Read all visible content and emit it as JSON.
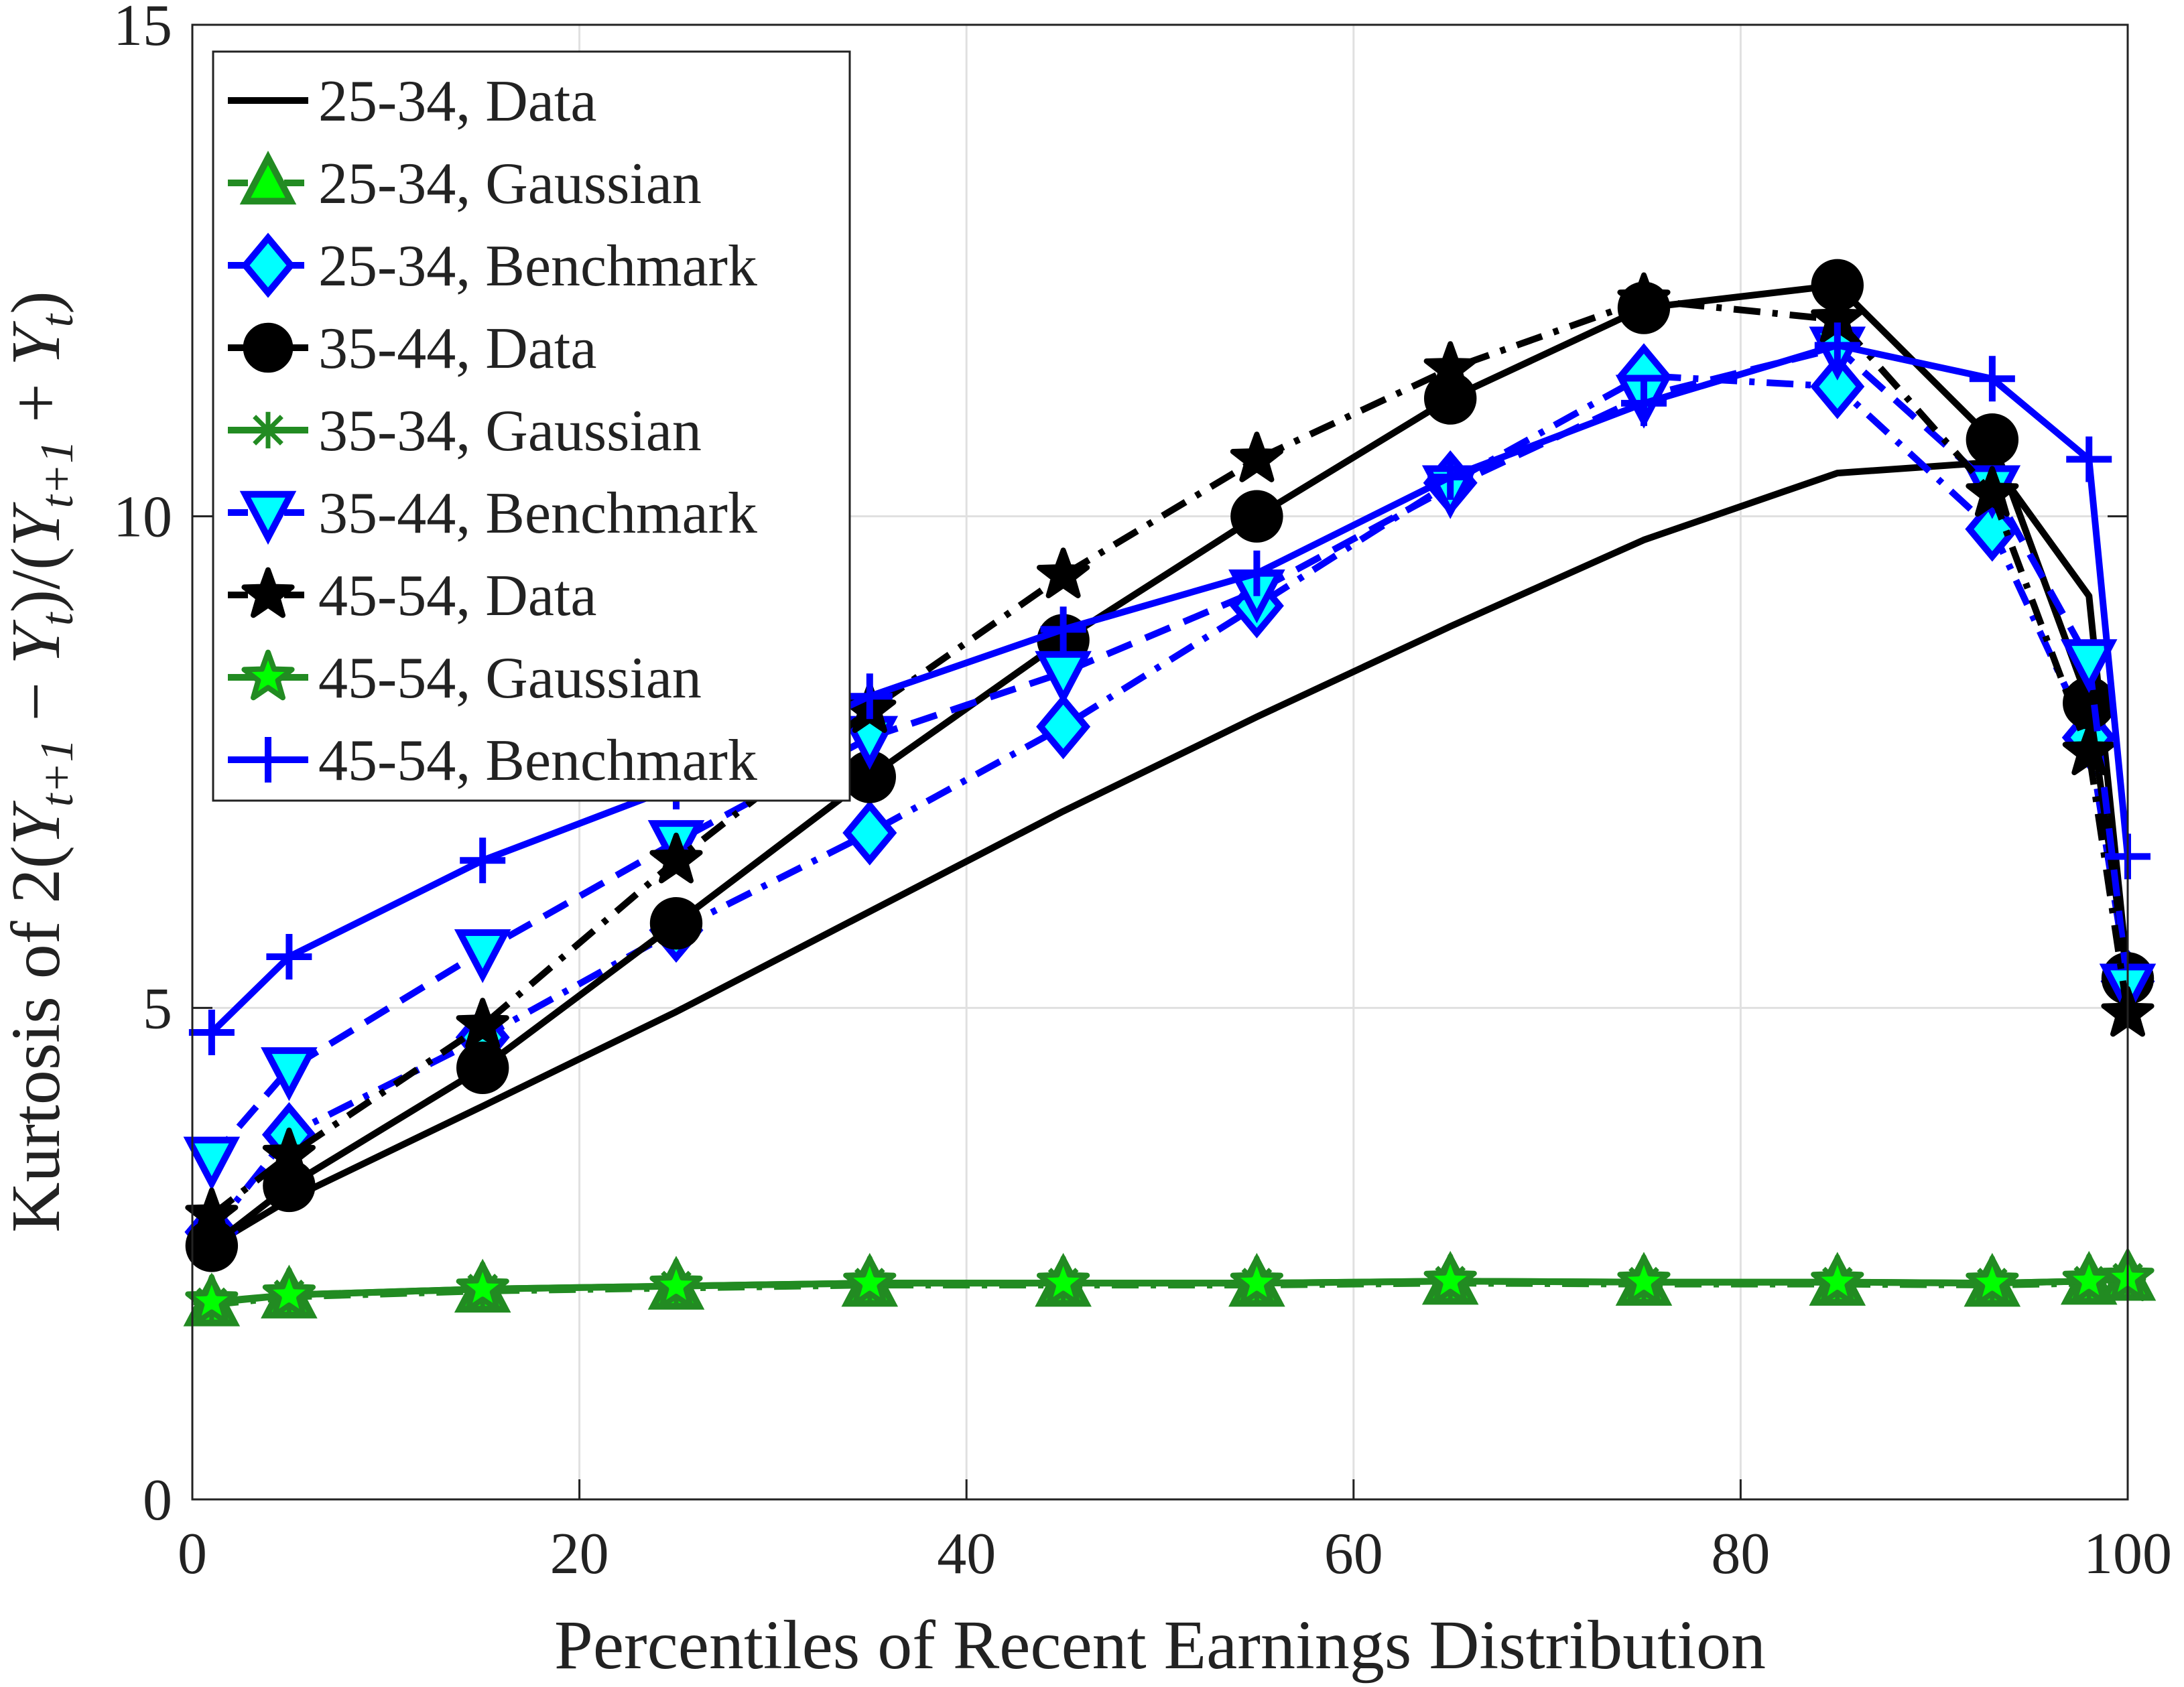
{
  "chart_data": {
    "type": "line",
    "xlabel": "Percentiles of Recent Earnings Distribution",
    "ylabel": "Kurtosis of 2(Y_{t+1} − Y_t)/(Y_{t+1} + Y_t)",
    "xlim": [
      0,
      100
    ],
    "ylim": [
      0,
      15
    ],
    "xticks": [
      0,
      20,
      40,
      60,
      80,
      100
    ],
    "yticks": [
      0,
      5,
      10,
      15
    ],
    "grid": true,
    "legend_position": "top-left",
    "x": [
      1,
      5,
      15,
      25,
      35,
      45,
      55,
      65,
      75,
      85,
      93,
      98,
      100
    ],
    "series": [
      {
        "name": "25-34, Data",
        "color": "#000000",
        "line": "solid",
        "marker": "none",
        "values": [
          2.58,
          3.05,
          4.0,
          4.96,
          5.98,
          7.0,
          7.96,
          8.88,
          9.76,
          10.44,
          10.55,
          9.19,
          5.34
        ]
      },
      {
        "name": "25-34, Gaussian",
        "color": "#228B22",
        "fill": "#00FF00",
        "line": "dashdot",
        "marker": "triangle-up",
        "values": [
          1.98,
          2.06,
          2.12,
          2.15,
          2.18,
          2.18,
          2.18,
          2.2,
          2.19,
          2.19,
          2.18,
          2.2,
          2.24
        ]
      },
      {
        "name": "25-34, Benchmark",
        "color": "#0000FF",
        "fill": "#00FFFF",
        "line": "dashdot",
        "marker": "diamond",
        "values": [
          2.72,
          3.71,
          4.7,
          5.79,
          6.78,
          7.86,
          9.09,
          10.34,
          11.43,
          11.32,
          9.87,
          7.75,
          5.27
        ]
      },
      {
        "name": "35-44, Data",
        "color": "#000000",
        "fill": "#000000",
        "line": "solid",
        "marker": "circle",
        "values": [
          2.58,
          3.19,
          4.39,
          5.86,
          7.35,
          8.74,
          10.0,
          11.2,
          12.12,
          12.35,
          10.78,
          8.1,
          5.3
        ]
      },
      {
        "name": "35-34, Gaussian",
        "color": "#228B22",
        "line": "solid",
        "marker": "asterisk",
        "values": [
          2.0,
          2.08,
          2.14,
          2.17,
          2.2,
          2.2,
          2.2,
          2.22,
          2.21,
          2.21,
          2.2,
          2.22,
          2.25
        ]
      },
      {
        "name": "35-44, Benchmark",
        "color": "#0000FF",
        "fill": "#00FFFF",
        "line": "dashed",
        "marker": "triangle-down",
        "values": [
          3.47,
          4.38,
          5.58,
          6.69,
          7.75,
          8.41,
          9.24,
          10.3,
          11.22,
          11.71,
          10.3,
          8.53,
          5.23
        ]
      },
      {
        "name": "45-54, Data",
        "color": "#000000",
        "fill": "#000000",
        "line": "dashdot",
        "marker": "star",
        "values": [
          2.89,
          3.5,
          4.82,
          6.5,
          8.03,
          9.4,
          10.58,
          11.5,
          12.2,
          12.0,
          10.23,
          7.6,
          4.94
        ]
      },
      {
        "name": "45-54, Gaussian",
        "color": "#228B22",
        "fill": "#00FF00",
        "line": "solid",
        "marker": "star",
        "values": [
          2.01,
          2.08,
          2.14,
          2.17,
          2.2,
          2.2,
          2.2,
          2.22,
          2.21,
          2.21,
          2.2,
          2.22,
          2.25
        ]
      },
      {
        "name": "45-54, Benchmark",
        "color": "#0000FF",
        "line": "solid",
        "marker": "plus",
        "values": [
          4.75,
          5.52,
          6.5,
          7.25,
          8.17,
          8.85,
          9.42,
          10.4,
          11.15,
          11.74,
          11.4,
          10.58,
          6.54
        ]
      }
    ]
  }
}
